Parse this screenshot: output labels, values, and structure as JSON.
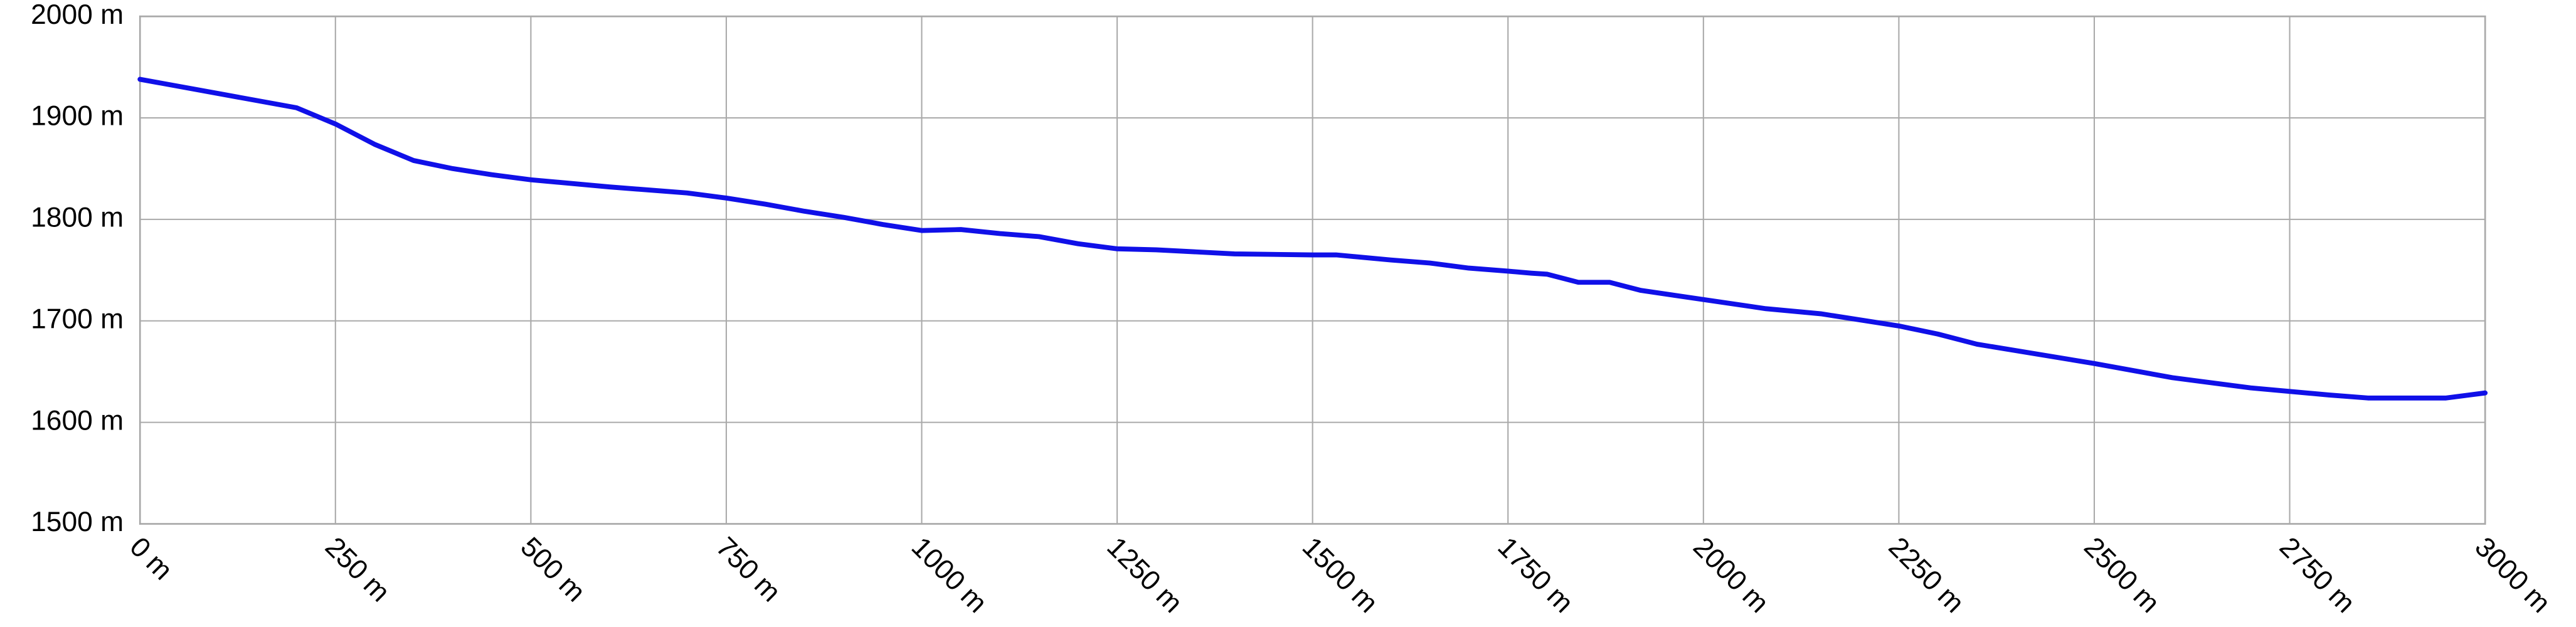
{
  "chart_data": {
    "type": "line",
    "color": "#1010e8",
    "grid": true,
    "x": [
      0,
      100,
      200,
      250,
      300,
      350,
      400,
      450,
      500,
      600,
      700,
      750,
      800,
      850,
      900,
      950,
      1000,
      1050,
      1100,
      1150,
      1200,
      1250,
      1300,
      1400,
      1500,
      1530,
      1600,
      1650,
      1700,
      1750,
      1780,
      1800,
      1840,
      1880,
      1920,
      2000,
      2080,
      2150,
      2250,
      2300,
      2350,
      2500,
      2600,
      2700,
      2800,
      2850,
      2950,
      3000
    ],
    "values": [
      1938,
      1924,
      1910,
      1894,
      1874,
      1858,
      1850,
      1844,
      1839,
      1832,
      1826,
      1821,
      1815,
      1808,
      1802,
      1795,
      1789,
      1790,
      1786,
      1783,
      1776,
      1771,
      1770,
      1766,
      1765,
      1765,
      1760,
      1757,
      1752,
      1749,
      1747,
      1746,
      1738,
      1738,
      1730,
      1721,
      1712,
      1707,
      1695,
      1687,
      1677,
      1658,
      1644,
      1634,
      1627,
      1624,
      1624,
      1629
    ],
    "xlim": [
      0,
      3000
    ],
    "xticks": [
      {
        "value": 0,
        "label": "0 m"
      },
      {
        "value": 250,
        "label": "250 m"
      },
      {
        "value": 500,
        "label": "500 m"
      },
      {
        "value": 750,
        "label": "750 m"
      },
      {
        "value": 1000,
        "label": "1000 m"
      },
      {
        "value": 1250,
        "label": "1250 m"
      },
      {
        "value": 1500,
        "label": "1500 m"
      },
      {
        "value": 1750,
        "label": "1750 m"
      },
      {
        "value": 2000,
        "label": "2000 m"
      },
      {
        "value": 2250,
        "label": "2250 m"
      },
      {
        "value": 2500,
        "label": "2500 m"
      },
      {
        "value": 2750,
        "label": "2750 m"
      },
      {
        "value": 3000,
        "label": "3000 m"
      }
    ],
    "ylim": [
      1500,
      2000
    ],
    "yticks": [
      {
        "value": 1500,
        "label": "1500 m"
      },
      {
        "value": 1600,
        "label": "1600 m"
      },
      {
        "value": 1700,
        "label": "1700 m"
      },
      {
        "value": 1800,
        "label": "1800 m"
      },
      {
        "value": 1900,
        "label": "1900 m"
      },
      {
        "value": 2000,
        "label": "2000 m"
      }
    ]
  }
}
